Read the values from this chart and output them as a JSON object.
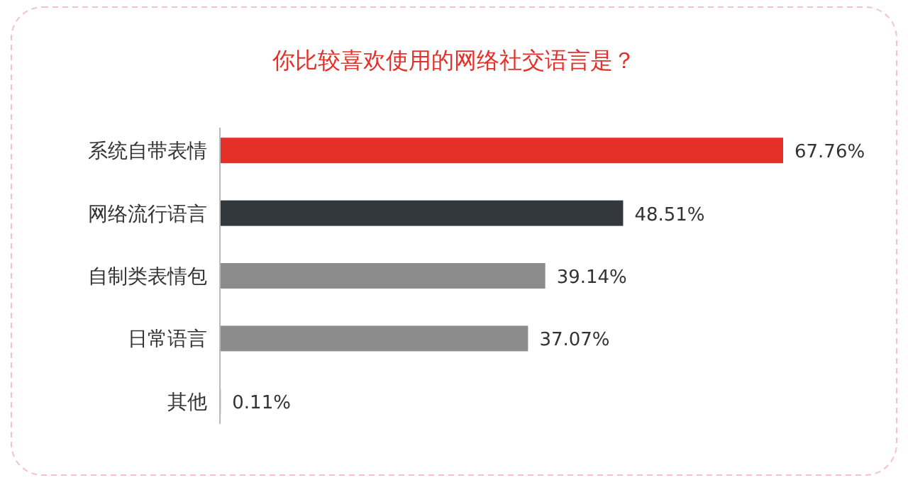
{
  "chart_data": {
    "type": "bar",
    "orientation": "horizontal",
    "title": "你比较喜欢使用的网络社交语言是？",
    "categories": [
      "系统自带表情",
      "网络流行语言",
      "自制类表情包",
      "日常语言",
      "其他"
    ],
    "values": [
      67.76,
      48.51,
      39.14,
      37.07,
      0.11
    ],
    "colors": [
      "#e5302a",
      "#33383d",
      "#8c8c8c",
      "#8c8c8c",
      "#8c8c8c"
    ],
    "value_labels": [
      "67.76%",
      "48.51%",
      "39.14%",
      "37.07%",
      "0.11%"
    ]
  }
}
